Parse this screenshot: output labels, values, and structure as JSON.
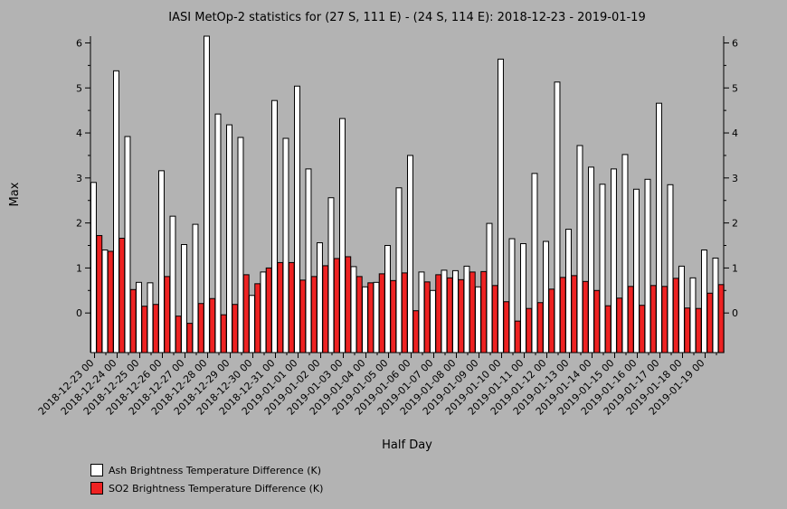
{
  "chart_data": {
    "type": "bar",
    "title": "IASI MetOp-2 statistics for (27 S, 111 E) - (24 S, 114 E): 2018-12-23 - 2019-01-19",
    "xlabel": "Half Day",
    "ylabel": "Max",
    "ylim": [
      -0.88,
      6.15
    ],
    "yticks": [
      0,
      1,
      2,
      3,
      4,
      5,
      6
    ],
    "x_tick_labels": [
      "2018-12-23 00",
      "2018-12-24 00",
      "2018-12-25 00",
      "2018-12-26 00",
      "2018-12-27 00",
      "2018-12-28 00",
      "2018-12-29 00",
      "2018-12-30 00",
      "2018-12-31 00",
      "2019-01-01 00",
      "2019-01-02 00",
      "2019-01-03 00",
      "2019-01-04 00",
      "2019-01-05 00",
      "2019-01-06 00",
      "2019-01-07 00",
      "2019-01-08 00",
      "2019-01-09 00",
      "2019-01-10 00",
      "2019-01-11 00",
      "2019-01-12 00",
      "2019-01-13 00",
      "2019-01-14 00",
      "2019-01-15 00",
      "2019-01-16 00",
      "2019-01-17 00",
      "2019-01-18 00",
      "2019-01-19 00"
    ],
    "legend_placement": "bottom-left",
    "series": [
      {
        "name": "Ash Brightness Temperature Difference (K)",
        "color": "#ffffff",
        "values": [
          2.9,
          1.4,
          5.38,
          3.92,
          0.68,
          0.67,
          3.16,
          2.15,
          1.52,
          1.97,
          6.15,
          4.42,
          4.18,
          3.9,
          0.39,
          0.91,
          4.72,
          3.88,
          5.04,
          3.2,
          1.56,
          2.56,
          4.32,
          1.03,
          0.58,
          0.68,
          1.5,
          2.78,
          3.5,
          0.91,
          0.5,
          0.95,
          0.94,
          1.04,
          0.58,
          1.99,
          5.64,
          1.65,
          1.54,
          3.1,
          1.59,
          5.13,
          1.86,
          3.72,
          3.24,
          2.86,
          3.2,
          3.52,
          2.75,
          2.97,
          4.66,
          2.85,
          1.04,
          0.78,
          1.4,
          1.22
        ]
      },
      {
        "name": "SO2 Brightness Temperature Difference (K)",
        "color": "#ee2222",
        "values": [
          1.72,
          1.37,
          1.66,
          0.52,
          0.15,
          0.19,
          0.81,
          -0.07,
          -0.23,
          0.21,
          0.32,
          -0.04,
          0.19,
          0.85,
          0.65,
          1.0,
          1.12,
          1.12,
          0.73,
          0.81,
          1.05,
          1.21,
          1.25,
          0.81,
          0.67,
          0.87,
          0.72,
          0.89,
          0.05,
          0.69,
          0.85,
          0.78,
          0.74,
          0.91,
          0.92,
          0.61,
          0.25,
          -0.18,
          0.1,
          0.23,
          0.53,
          0.79,
          0.83,
          0.7,
          0.5,
          0.16,
          0.33,
          0.59,
          0.17,
          0.61,
          0.59,
          0.77,
          0.11,
          0.1,
          0.44,
          0.63
        ]
      }
    ]
  }
}
